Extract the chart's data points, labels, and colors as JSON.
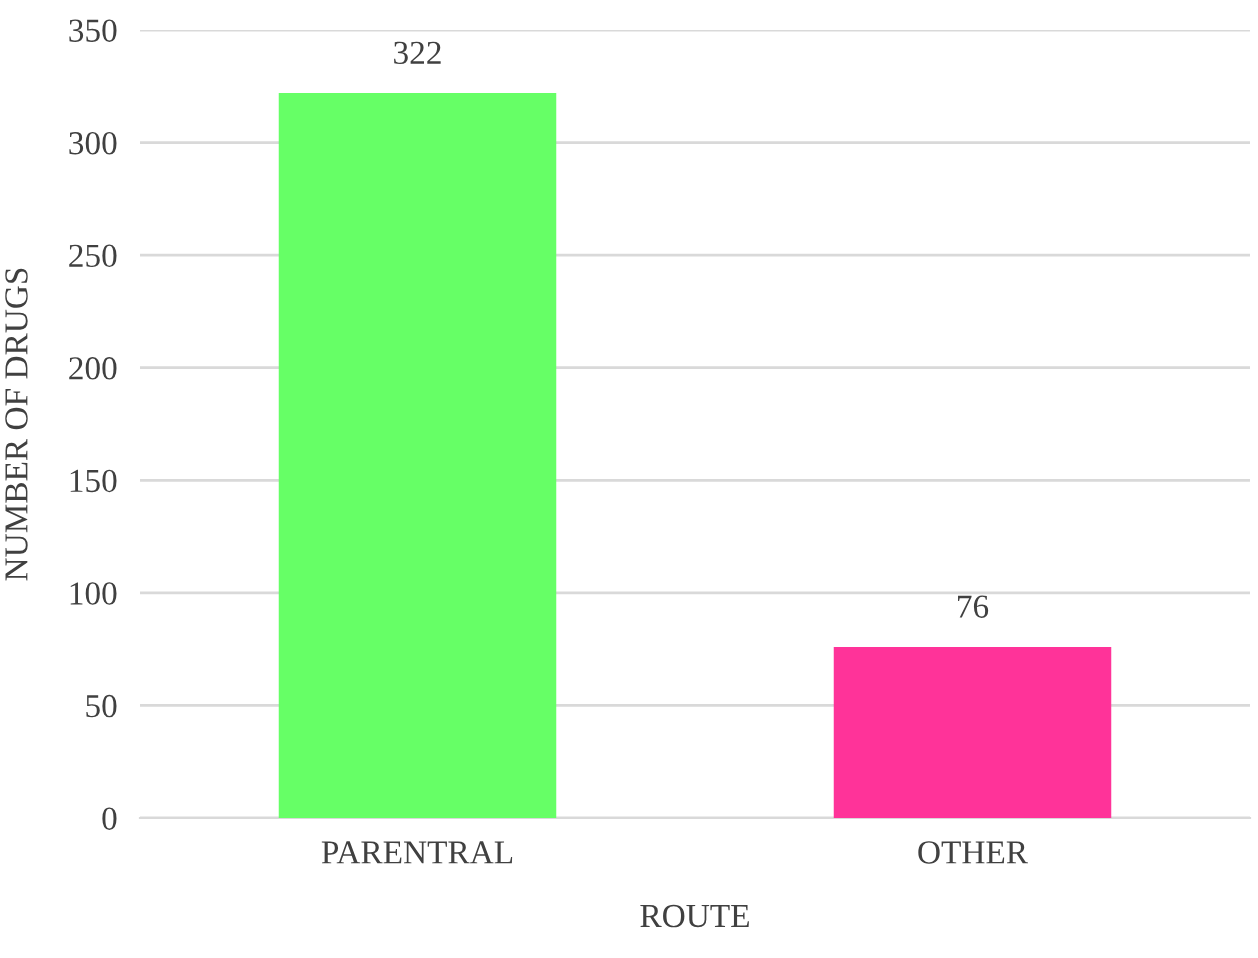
{
  "chart_data": {
    "type": "bar",
    "xlabel": "ROUTE",
    "ylabel": "NUMBER OF DRUGS",
    "categories": [
      "PARENTRAL",
      "OTHER"
    ],
    "values": [
      322,
      76
    ],
    "colors": [
      "#66ff66",
      "#ff3399"
    ],
    "ylim": [
      0,
      350
    ],
    "yticks": [
      0,
      50,
      100,
      150,
      200,
      250,
      300,
      350
    ],
    "grid": "y",
    "data_labels": true,
    "legend": false
  }
}
